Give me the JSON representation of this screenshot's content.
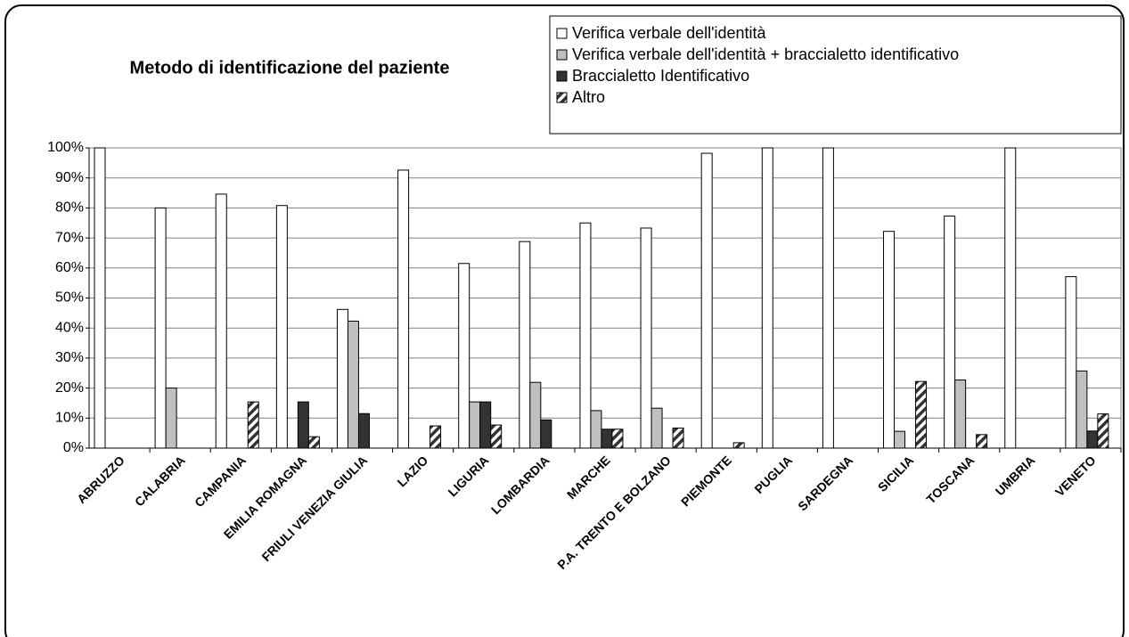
{
  "chart_data": {
    "type": "bar",
    "title": "Metodo di identificazione del paziente",
    "categories": [
      "ABRUZZO",
      "CALABRIA",
      "CAMPANIA",
      "EMILIA ROMAGNA",
      "FRIULI VENEZIA GIULIA",
      "LAZIO",
      "LIGURIA",
      "LOMBARDIA",
      "MARCHE",
      "P.A. TRENTO E BOLZANO",
      "PIEMONTE",
      "PUGLIA",
      "SARDEGNA",
      "SICILIA",
      "TOSCANA",
      "UMBRIA",
      "VENETO"
    ],
    "series": [
      {
        "name": "Verifica verbale dell'identità",
        "color": "#ffffff",
        "values": [
          100,
          80,
          84.6,
          80.8,
          46.2,
          92.6,
          61.5,
          68.8,
          75,
          73.3,
          98.2,
          100,
          100,
          72.2,
          77.3,
          100,
          57.1
        ]
      },
      {
        "name": "Verifica verbale dell'identità + braccialetto identificativo",
        "color": "#c0c0c0",
        "values": [
          0,
          20,
          0,
          0,
          42.3,
          0,
          15.4,
          21.9,
          12.5,
          13.3,
          0,
          0,
          0,
          5.6,
          22.7,
          0,
          25.7
        ]
      },
      {
        "name": "Braccialetto Identificativo",
        "color": "#333333",
        "values": [
          0,
          0,
          0,
          15.4,
          11.5,
          0,
          15.4,
          9.4,
          6.3,
          0,
          0,
          0,
          0,
          0,
          0,
          0,
          5.7
        ]
      },
      {
        "name": "Altro",
        "color": "#333333",
        "hatch": true,
        "values": [
          0,
          0,
          15.4,
          3.8,
          0,
          7.4,
          7.7,
          0,
          6.3,
          6.7,
          1.8,
          0,
          0,
          22.2,
          4.5,
          0,
          11.4
        ]
      }
    ],
    "ylim": [
      0,
      100
    ],
    "yticks": [
      {
        "value": 0,
        "label": "0%"
      },
      {
        "value": 10,
        "label": "10%"
      },
      {
        "value": 20,
        "label": "20%"
      },
      {
        "value": 30,
        "label": "30%"
      },
      {
        "value": 40,
        "label": "40%"
      },
      {
        "value": 50,
        "label": "50%"
      },
      {
        "value": 60,
        "label": "60%"
      },
      {
        "value": 70,
        "label": "70%"
      },
      {
        "value": 80,
        "label": "80%"
      },
      {
        "value": 90,
        "label": "90%"
      },
      {
        "value": 100,
        "label": "100%"
      }
    ],
    "grid": true,
    "legend": "top-right"
  }
}
